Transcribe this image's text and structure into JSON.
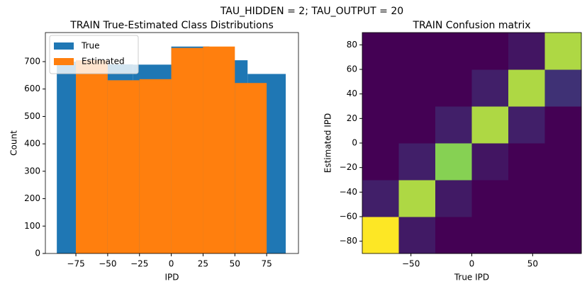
{
  "title": "TAU_HIDDEN = 2; TAU_OUTPUT = 20",
  "chart_data": [
    {
      "type": "histogram",
      "title": "TRAIN True-Estimated Class Distributions",
      "x_label": "IPD",
      "y_label": "Count",
      "legend": "upper left",
      "xlim": [
        -99,
        100
      ],
      "ylim": [
        0,
        806
      ],
      "xticks": [
        {
          "value": -75,
          "label": "−75"
        },
        {
          "value": -50,
          "label": "−50"
        },
        {
          "value": -25,
          "label": "−25"
        },
        0,
        25,
        50,
        75
      ],
      "yticks": [
        0,
        100,
        200,
        300,
        400,
        500,
        600,
        700
      ],
      "series": [
        {
          "name": "True",
          "color": "#1f77b4",
          "bins": [
            -90,
            -60,
            -30,
            0,
            30,
            60,
            90
          ],
          "values": [
            700,
            690,
            689,
            755,
            705,
            655
          ]
        },
        {
          "name": "Estimated",
          "color": "#ff7f0e",
          "bins": [
            -75,
            -50,
            -25,
            0,
            25,
            50,
            75
          ],
          "values": [
            705,
            632,
            636,
            750,
            755,
            622
          ]
        }
      ]
    },
    {
      "type": "heatmap",
      "title": "TRAIN Confusion matrix",
      "x_label": "True IPD",
      "y_label": "Estimated IPD",
      "xlim": [
        -90,
        90
      ],
      "ylim": [
        -90,
        90
      ],
      "xticks": [
        {
          "value": -50,
          "label": "−50"
        },
        0,
        50
      ],
      "yticks": [
        {
          "value": -80,
          "label": "−80"
        },
        {
          "value": -60,
          "label": "−60"
        },
        {
          "value": -40,
          "label": "−40"
        },
        {
          "value": -20,
          "label": "−20"
        },
        0,
        20,
        40,
        60,
        80
      ],
      "x_bins": [
        -90,
        -60,
        -30,
        0,
        30,
        60,
        90
      ],
      "y_bins": [
        -90,
        -60,
        -30,
        0,
        30,
        60,
        90
      ],
      "z": [
        [
          640,
          50,
          0,
          0,
          0,
          0
        ],
        [
          60,
          560,
          50,
          0,
          0,
          0
        ],
        [
          0,
          60,
          520,
          40,
          0,
          0
        ],
        [
          0,
          0,
          60,
          560,
          60,
          0
        ],
        [
          0,
          0,
          0,
          60,
          560,
          95
        ],
        [
          0,
          0,
          0,
          0,
          40,
          560
        ]
      ]
    }
  ]
}
